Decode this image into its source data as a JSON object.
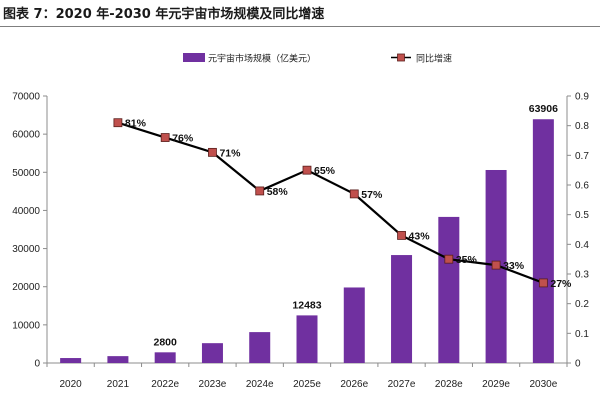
{
  "figure": {
    "title": "图表 7：2020 年-2030 年元宇宙市场规模及同比增速"
  },
  "chart_data": {
    "type": "bar+line",
    "categories": [
      "2020",
      "2021",
      "2022e",
      "2023e",
      "2024e",
      "2025e",
      "2026e",
      "2027e",
      "2028e",
      "2029e",
      "2030e"
    ],
    "series": [
      {
        "name": "元宇宙市场规模（亿美元）",
        "type": "bar",
        "axis": "left",
        "color": "#7030a0",
        "values": [
          1300,
          1800,
          2800,
          5200,
          8100,
          12483,
          19800,
          28300,
          38300,
          50600,
          63906
        ]
      },
      {
        "name": "同比增速",
        "type": "line",
        "axis": "right",
        "color": "#000000",
        "marker_color": "#c0504d",
        "values": [
          null,
          0.81,
          0.76,
          0.71,
          0.58,
          0.65,
          0.57,
          0.43,
          0.35,
          0.33,
          0.27
        ]
      }
    ],
    "bar_labels": [
      {
        "index": 2,
        "text": "2800"
      },
      {
        "index": 5,
        "text": "12483"
      },
      {
        "index": 10,
        "text": "63906"
      }
    ],
    "line_labels": [
      "",
      "81%",
      "76%",
      "71%",
      "58%",
      "65%",
      "57%",
      "43%",
      "35%",
      "33%",
      "27%"
    ],
    "y_left": {
      "min": 0,
      "max": 70000,
      "ticks": [
        "0",
        "10000",
        "20000",
        "30000",
        "40000",
        "50000",
        "60000",
        "70000"
      ]
    },
    "y_right": {
      "min": 0,
      "max": 0.9,
      "ticks": [
        "0",
        "0.1",
        "0.2",
        "0.3",
        "0.4",
        "0.5",
        "0.6",
        "0.7",
        "0.8",
        "0.9"
      ]
    },
    "legend": {
      "position": "top",
      "items": [
        "元宇宙市场规模（亿美元）",
        "同比增速"
      ]
    }
  }
}
